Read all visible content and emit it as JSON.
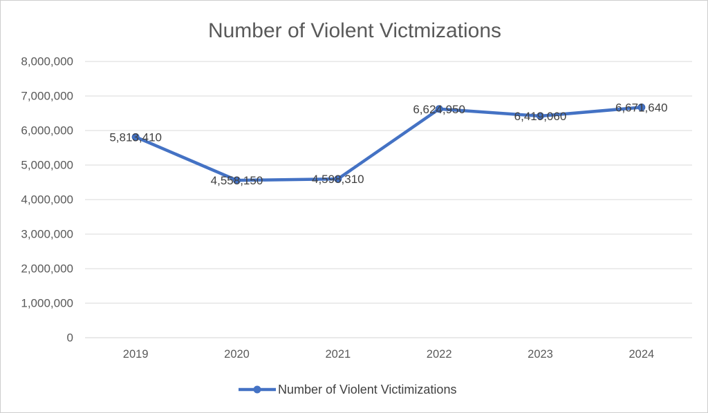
{
  "chart_data": {
    "type": "line",
    "title": "Number of Violent Victmizations",
    "categories": [
      "2019",
      "2020",
      "2021",
      "2022",
      "2023",
      "2024"
    ],
    "series": [
      {
        "name": "Number of Violent Victimizations",
        "values": [
          5813410,
          4558150,
          4598310,
          6624950,
          6419060,
          6671640
        ],
        "data_labels": [
          "5,813,410",
          "4,558,150",
          "4,598,310",
          "6,624,950",
          "6,419,060",
          "6,671,640"
        ]
      }
    ],
    "xlabel": "",
    "ylabel": "",
    "ylim": [
      0,
      8000000
    ],
    "ytick_step": 1000000,
    "ytick_labels": [
      "0",
      "1,000,000",
      "2,000,000",
      "3,000,000",
      "4,000,000",
      "5,000,000",
      "6,000,000",
      "7,000,000",
      "8,000,000"
    ],
    "grid": "horizontal",
    "legend_position": "bottom",
    "data_label_position": "center",
    "colors": {
      "line": "#4472C4",
      "marker_fill": "#4472C4",
      "marker_stroke": "#3A63AE",
      "gridline": "#D9D9D9",
      "baseline": "#D3D3D3",
      "title_text": "#595959",
      "axis_text": "#595959",
      "data_label_text": "#404040",
      "frame_border": "#CDCDCD"
    }
  }
}
